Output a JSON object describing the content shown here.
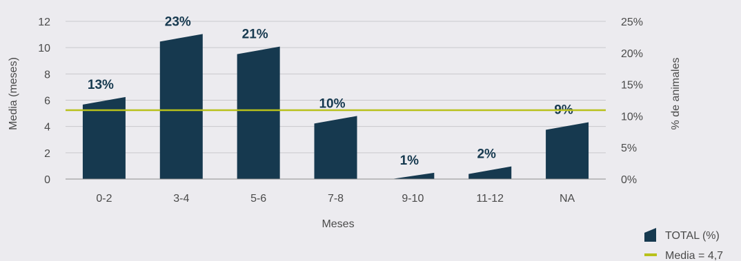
{
  "chart_data": {
    "type": "bar",
    "categories": [
      "0-2",
      "3-4",
      "5-6",
      "7-8",
      "9-10",
      "11-12",
      "NA"
    ],
    "series": [
      {
        "name": "TOTAL (%)",
        "axis": "right",
        "values": [
          13,
          23,
          21,
          10,
          1,
          2,
          9
        ],
        "labels": [
          "13%",
          "23%",
          "21%",
          "10%",
          "1%",
          "2%",
          "9%"
        ],
        "color": "#16394f"
      }
    ],
    "reference_line": {
      "name": "Media = 4,7",
      "axis": "left",
      "value": 4.7,
      "color": "#b8c11b"
    },
    "xlabel": "Meses",
    "ylabel_left": "Media (meses)",
    "ylabel_right": "% de animales",
    "ylim_left": [
      0,
      12
    ],
    "ylim_right": [
      0,
      25
    ],
    "yticks_left": [
      "0",
      "2",
      "4",
      "6",
      "8",
      "10",
      "12"
    ],
    "yticks_right": [
      "0%",
      "5%",
      "10%",
      "15%",
      "20%",
      "25%"
    ],
    "grid": "horizontal",
    "legend_position": "bottom-right"
  }
}
